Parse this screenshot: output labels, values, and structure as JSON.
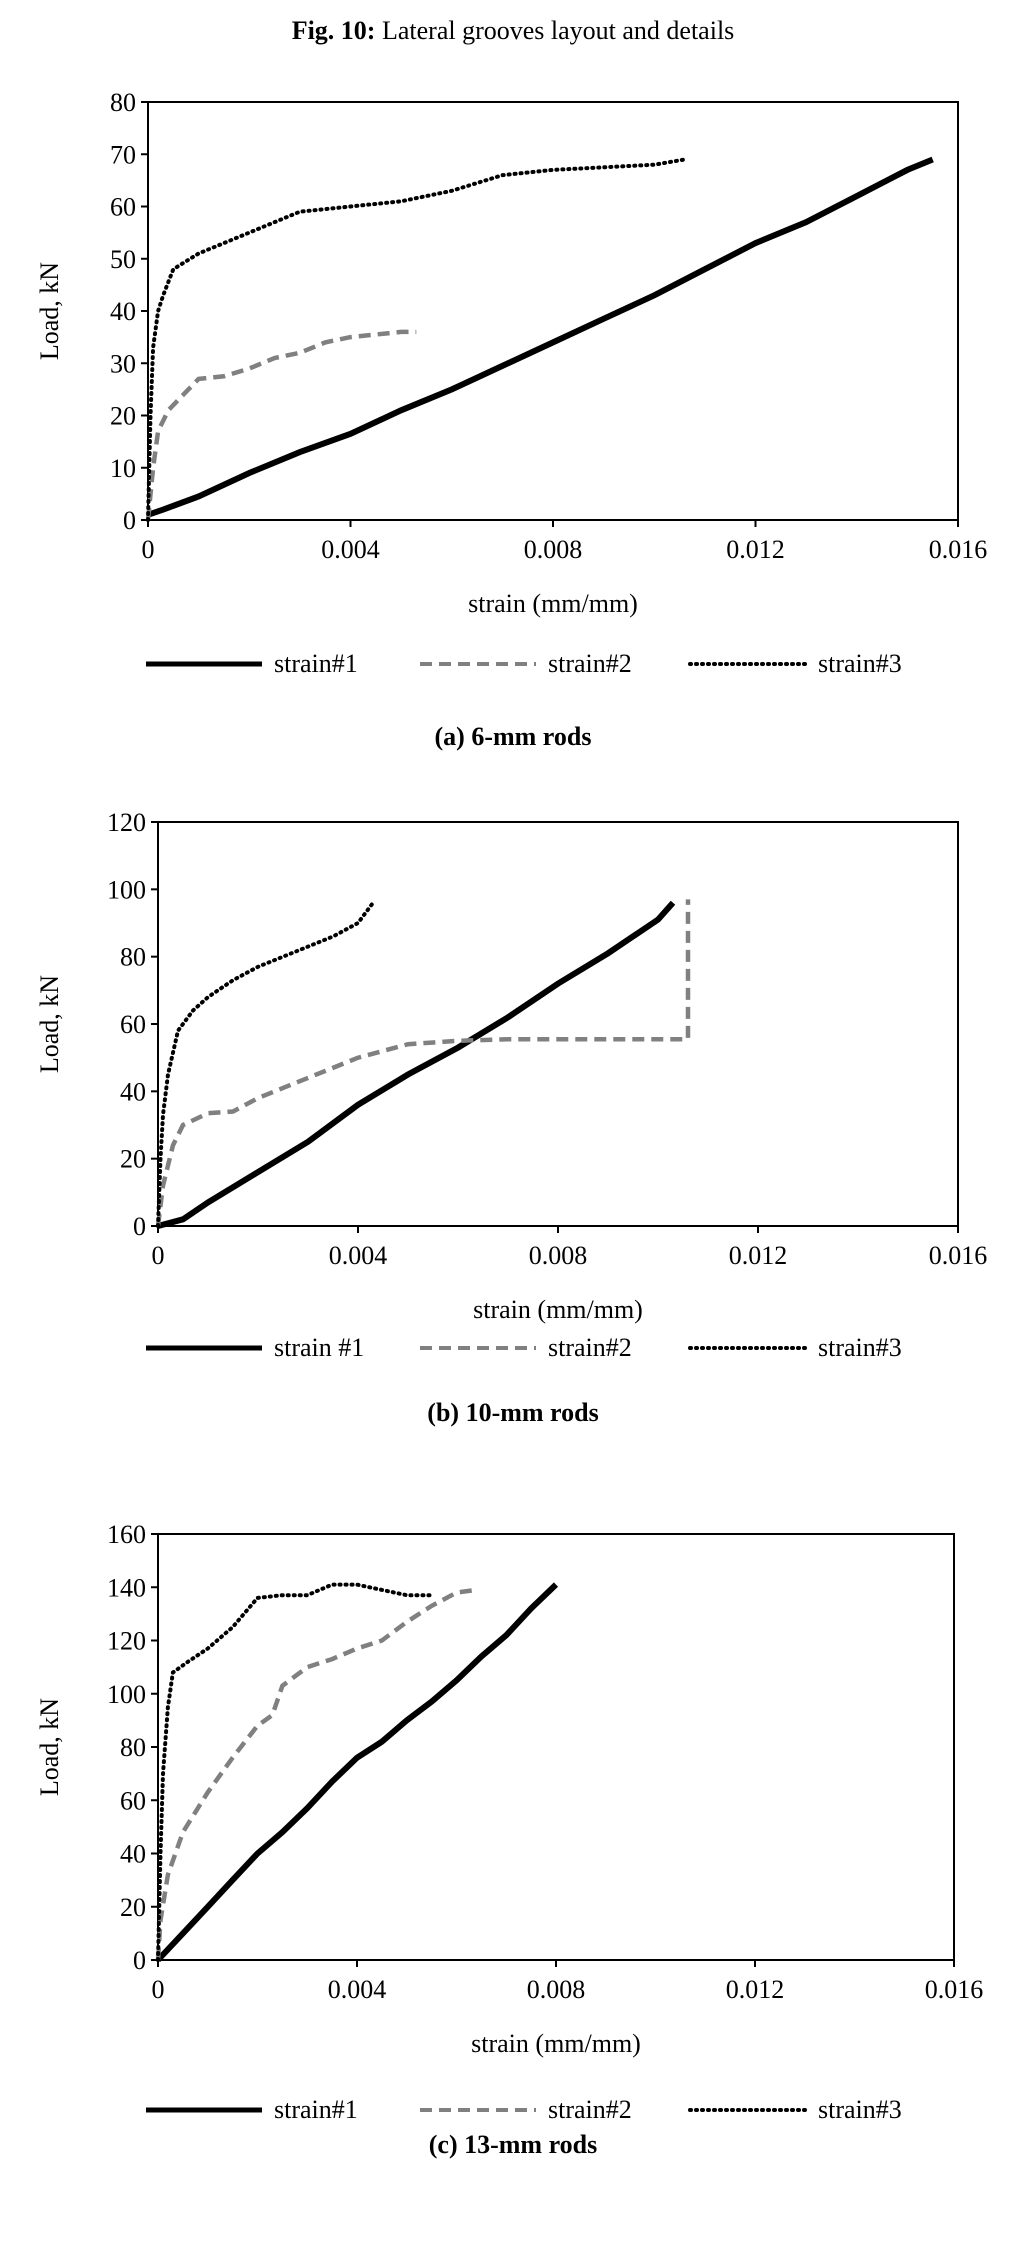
{
  "figure": {
    "label": "Fig. 10:",
    "title": "Lateral grooves layout and details"
  },
  "series_styles": [
    {
      "color": "#000000",
      "style": "solid"
    },
    {
      "color": "#808080",
      "style": "dashed"
    },
    {
      "color": "#000000",
      "style": "dotted"
    }
  ],
  "chart_data": [
    {
      "type": "line",
      "caption": "(a) 6-mm rods",
      "xlabel": "strain (mm/mm)",
      "ylabel": "Load, kN",
      "xlim": [
        0,
        0.016
      ],
      "ylim": [
        0,
        80
      ],
      "xticks": [
        "0",
        "0.004",
        "0.008",
        "0.012",
        "0.016"
      ],
      "yticks": [
        "0",
        "10",
        "20",
        "30",
        "40",
        "50",
        "60",
        "70",
        "80"
      ],
      "grid": false,
      "legend_position": "bottom",
      "series": [
        {
          "name": "strain#1",
          "x": [
            0,
            0.0003,
            0.001,
            0.002,
            0.003,
            0.004,
            0.005,
            0.006,
            0.007,
            0.008,
            0.009,
            0.01,
            0.011,
            0.012,
            0.013,
            0.014,
            0.015,
            0.0155
          ],
          "y": [
            1,
            2,
            4.5,
            9,
            13,
            16.5,
            21,
            25,
            29.5,
            34,
            38.5,
            43,
            48,
            53,
            57,
            62,
            67,
            69
          ]
        },
        {
          "name": "strain#2",
          "x": [
            0,
            0.0001,
            0.0002,
            0.0004,
            0.0007,
            0.001,
            0.0015,
            0.002,
            0.0025,
            0.003,
            0.0035,
            0.004,
            0.0045,
            0.005,
            0.0053
          ],
          "y": [
            0,
            10,
            17,
            21,
            24,
            27,
            27.5,
            29,
            31,
            32,
            34,
            35,
            35.5,
            36,
            36
          ]
        },
        {
          "name": "strain#3",
          "x": [
            0,
            5e-05,
            0.0001,
            0.0002,
            0.0003,
            0.0005,
            0.001,
            0.0015,
            0.002,
            0.003,
            0.004,
            0.005,
            0.006,
            0.007,
            0.008,
            0.009,
            0.01,
            0.0106
          ],
          "y": [
            0,
            20,
            33,
            40,
            43,
            48,
            51,
            53,
            55,
            59,
            60,
            61,
            63,
            66,
            67,
            67.5,
            68,
            69
          ]
        }
      ]
    },
    {
      "type": "line",
      "caption": "(b) 10-mm rods",
      "xlabel": "strain (mm/mm)",
      "ylabel": "Load, kN",
      "xlim": [
        0,
        0.016
      ],
      "ylim": [
        0,
        120
      ],
      "xticks": [
        "0",
        "0.004",
        "0.008",
        "0.012",
        "0.016"
      ],
      "yticks": [
        "0",
        "20",
        "40",
        "60",
        "80",
        "100",
        "120"
      ],
      "grid": false,
      "legend_position": "bottom",
      "series": [
        {
          "name": "strain #1",
          "x": [
            0,
            0.0005,
            0.001,
            0.002,
            0.003,
            0.004,
            0.005,
            0.006,
            0.007,
            0.008,
            0.009,
            0.01,
            0.0103
          ],
          "y": [
            0,
            2,
            7,
            16,
            25,
            36,
            45,
            53,
            62,
            72,
            81,
            91,
            96
          ]
        },
        {
          "name": "strain#2",
          "x": [
            0,
            0.0001,
            0.0003,
            0.0005,
            0.001,
            0.0015,
            0.002,
            0.003,
            0.004,
            0.005,
            0.006,
            0.007,
            0.008,
            0.009,
            0.0106,
            0.0106
          ],
          "y": [
            0,
            12,
            24,
            30,
            33.5,
            34,
            38,
            44,
            50,
            54,
            55,
            55.5,
            55.5,
            55.5,
            55.5,
            97
          ]
        },
        {
          "name": "strain#3",
          "x": [
            0,
            5e-05,
            0.0001,
            0.0002,
            0.0004,
            0.0007,
            0.001,
            0.0015,
            0.002,
            0.0025,
            0.003,
            0.0035,
            0.004,
            0.0043
          ],
          "y": [
            0,
            20,
            33,
            45,
            58,
            64,
            68,
            73,
            77,
            80,
            83,
            86,
            90,
            96
          ]
        }
      ]
    },
    {
      "type": "line",
      "caption": "(c) 13-mm rods",
      "xlabel": "strain (mm/mm)",
      "ylabel": "Load, kN",
      "xlim": [
        0,
        0.016
      ],
      "ylim": [
        0,
        160
      ],
      "xticks": [
        "0",
        "0.004",
        "0.008",
        "0.012",
        "0.016"
      ],
      "yticks": [
        "0",
        "20",
        "40",
        "60",
        "80",
        "100",
        "120",
        "140",
        "160"
      ],
      "grid": false,
      "legend_position": "bottom",
      "series": [
        {
          "name": "strain#1",
          "x": [
            0,
            0.0005,
            0.001,
            0.0015,
            0.002,
            0.0025,
            0.003,
            0.0035,
            0.004,
            0.0045,
            0.005,
            0.0055,
            0.006,
            0.0065,
            0.007,
            0.0075,
            0.008
          ],
          "y": [
            0,
            10,
            20,
            30,
            40,
            48,
            57,
            67,
            76,
            82,
            90,
            97,
            105,
            114,
            122,
            132,
            141
          ]
        },
        {
          "name": "strain#2",
          "x": [
            0,
            5e-05,
            0.0002,
            0.0005,
            0.001,
            0.0015,
            0.002,
            0.0023,
            0.0025,
            0.003,
            0.0035,
            0.004,
            0.0045,
            0.005,
            0.0055,
            0.006,
            0.0064
          ],
          "y": [
            0,
            15,
            32,
            48,
            63,
            76,
            88,
            92,
            103,
            110,
            113,
            117,
            120,
            127,
            133,
            138,
            139
          ]
        },
        {
          "name": "strain#3",
          "x": [
            0,
            5e-05,
            0.0001,
            0.0002,
            0.0003,
            0.0006,
            0.001,
            0.0015,
            0.002,
            0.0025,
            0.003,
            0.0035,
            0.004,
            0.0045,
            0.005,
            0.0055
          ],
          "y": [
            0,
            40,
            70,
            95,
            108,
            112,
            117,
            125,
            136,
            137,
            137,
            141,
            141,
            139,
            137,
            137
          ]
        }
      ]
    }
  ]
}
